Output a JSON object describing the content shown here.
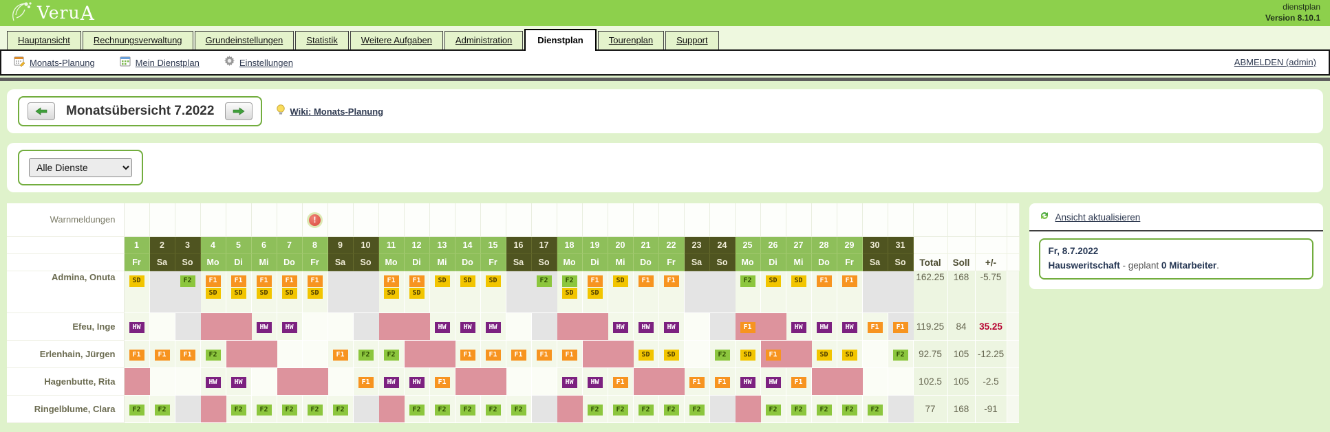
{
  "header": {
    "logo_prefix": "Veru",
    "logo_suffix": "A",
    "app_line1": "dienstplan",
    "app_line2": "Version 8.10.1"
  },
  "tabs": {
    "items": [
      {
        "label": "Hauptansicht",
        "active": false
      },
      {
        "label": "Rechnungsverwaltung",
        "active": false
      },
      {
        "label": "Grundeinstellungen",
        "active": false
      },
      {
        "label": "Statistik",
        "active": false
      },
      {
        "label": "Weitere Aufgaben",
        "active": false
      },
      {
        "label": "Administration",
        "active": false
      },
      {
        "label": "Dienstplan",
        "active": true
      },
      {
        "label": "Tourenplan",
        "active": false
      },
      {
        "label": "Support",
        "active": false
      }
    ]
  },
  "toolbar": {
    "items": [
      {
        "label": "Monats-Planung",
        "icon": "calendar-edit-icon"
      },
      {
        "label": "Mein Dienstplan",
        "icon": "calendar-grid-icon"
      },
      {
        "label": "Einstellungen",
        "icon": "gear-icon"
      }
    ],
    "logout_label": "ABMELDEN (admin)"
  },
  "month_nav": {
    "title": "Monatsübersicht 7.2022",
    "wiki_label": "Wiki: Monats-Planung"
  },
  "filter": {
    "selected_option": "Alle Dienste"
  },
  "roster": {
    "warnings_label": "Warnmeldungen",
    "warning_icon_day": 8,
    "days": [
      [
        "1",
        "Fr"
      ],
      [
        "2",
        "Sa"
      ],
      [
        "3",
        "So"
      ],
      [
        "4",
        "Mo"
      ],
      [
        "5",
        "Di"
      ],
      [
        "6",
        "Mi"
      ],
      [
        "7",
        "Do"
      ],
      [
        "8",
        "Fr"
      ],
      [
        "9",
        "Sa"
      ],
      [
        "10",
        "So"
      ],
      [
        "11",
        "Mo"
      ],
      [
        "12",
        "Di"
      ],
      [
        "13",
        "Mi"
      ],
      [
        "14",
        "Do"
      ],
      [
        "15",
        "Fr"
      ],
      [
        "16",
        "Sa"
      ],
      [
        "17",
        "So"
      ],
      [
        "18",
        "Mo"
      ],
      [
        "19",
        "Di"
      ],
      [
        "20",
        "Mi"
      ],
      [
        "21",
        "Do"
      ],
      [
        "22",
        "Fr"
      ],
      [
        "23",
        "Sa"
      ],
      [
        "24",
        "So"
      ],
      [
        "25",
        "Mo"
      ],
      [
        "26",
        "Di"
      ],
      [
        "27",
        "Mi"
      ],
      [
        "28",
        "Do"
      ],
      [
        "29",
        "Fr"
      ],
      [
        "30",
        "Sa"
      ],
      [
        "31",
        "So"
      ]
    ],
    "summary_headers": [
      "Total",
      "Soll",
      "+/-"
    ],
    "shift_colors": {
      "SD": {
        "bg": "#f2c500",
        "fg": "#4a3a00"
      },
      "F1": {
        "bg": "#f79420",
        "fg": "#ffffff"
      },
      "F2": {
        "bg": "#8cc63e",
        "fg": "#2c4a00"
      },
      "HW": {
        "bg": "#7c2180",
        "fg": "#ffffff"
      }
    },
    "employees": [
      {
        "name": "Admina, Onuta",
        "tall_row": true,
        "total": "162.25",
        "soll": "168",
        "diff": "-5.75",
        "diff_alert": false,
        "cells": [
          "SD",
          "g",
          "g:F2",
          "F1+SD",
          "F1+SD",
          "F1+SD",
          "F1+SD",
          "F1+SD",
          "g",
          "g",
          "F1+SD",
          "F1+SD",
          "SD",
          "SD",
          "SD",
          "g",
          "g:F2",
          "F2+SD",
          "F1+SD",
          "SD",
          "F1",
          "F1",
          "g",
          "g",
          "F2",
          "SD",
          "SD",
          "F1",
          "F1",
          "g",
          "g"
        ]
      },
      {
        "name": "Efeu, Inge",
        "tall_row": false,
        "total": "119.25",
        "soll": "84",
        "diff": "35.25",
        "diff_alert": true,
        "cells": [
          "HW",
          "",
          "g",
          "p",
          "p",
          "HW",
          "HW",
          "",
          "",
          "g",
          "p",
          "p",
          "HW",
          "HW",
          "HW",
          "",
          "g",
          "p",
          "p",
          "HW",
          "HW",
          "HW",
          "",
          "g",
          "p:F1",
          "p",
          "HW",
          "HW",
          "HW",
          "F1",
          "g:F1"
        ]
      },
      {
        "name": "Erlenhain, Jürgen",
        "tall_row": false,
        "total": "92.75",
        "soll": "105",
        "diff": "-12.25",
        "diff_alert": false,
        "cells": [
          "F1",
          "F1",
          "F1",
          "F2",
          "p",
          "p",
          "",
          "",
          "F1",
          "F2",
          "F2",
          "p",
          "p",
          "F1",
          "F1",
          "F1",
          "F1",
          "F1",
          "p",
          "p",
          "SD",
          "SD",
          "",
          "F2",
          "SD",
          "p:F1",
          "p",
          "SD",
          "SD",
          "",
          "F2"
        ]
      },
      {
        "name": "Hagenbutte, Rita",
        "tall_row": false,
        "total": "102.5",
        "soll": "105",
        "diff": "-2.5",
        "diff_alert": false,
        "cells": [
          "p",
          "",
          "",
          "HW",
          "HW",
          "",
          "p",
          "p",
          "",
          "F1",
          "HW",
          "HW",
          "F1",
          "p",
          "p",
          "",
          "",
          "HW",
          "HW",
          "F1",
          "p",
          "p",
          "F1",
          "F1",
          "HW",
          "HW",
          "F1",
          "p",
          "p",
          "",
          ""
        ]
      },
      {
        "name": "Ringelblume, Clara",
        "tall_row": false,
        "total": "77",
        "soll": "168",
        "diff": "-91",
        "diff_alert": false,
        "cells": [
          "F2",
          "F2",
          "g",
          "p",
          "F2",
          "F2",
          "F2",
          "F2",
          "F2",
          "g",
          "p",
          "F2",
          "F2",
          "F2",
          "F2",
          "F2",
          "g",
          "p",
          "F2",
          "F2",
          "F2",
          "F2",
          "F2",
          "g",
          "p",
          "F2",
          "F2",
          "F2",
          "F2",
          "F2",
          "g"
        ]
      }
    ]
  },
  "side_panel": {
    "refresh_label": "Ansicht aktualisieren",
    "info": {
      "date": "Fr, 8.7.2022",
      "highlight": "Hausweritschaft",
      "middle": " - geplant ",
      "count": "0 Mitarbeiter",
      "tail": "."
    }
  }
}
